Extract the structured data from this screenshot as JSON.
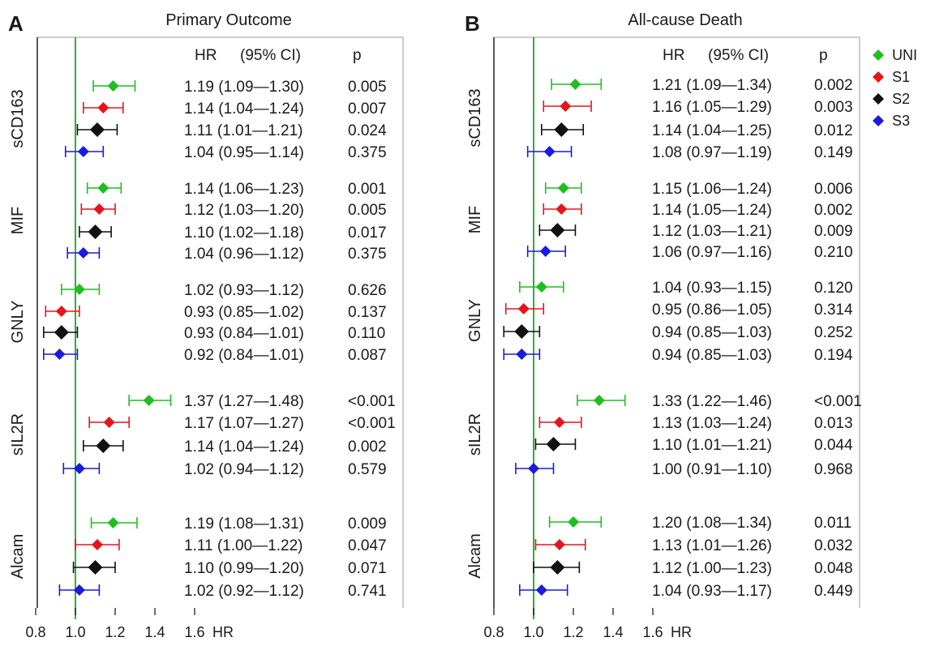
{
  "panels": [
    {
      "letter": "A",
      "title": "Primary Outcome"
    },
    {
      "letter": "B",
      "title": "All-cause Death"
    }
  ],
  "column_headers": {
    "hr": "HR",
    "ci": "(95% CI)",
    "p": "p"
  },
  "x_axis_label": "HR",
  "legend": [
    {
      "name": "UNI",
      "color": "#1fbf1f"
    },
    {
      "name": "S1",
      "color": "#e8141b"
    },
    {
      "name": "S2",
      "color": "#111111"
    },
    {
      "name": "S3",
      "color": "#1a1ae0"
    }
  ],
  "reference_line_color": "#2db32d",
  "chart_data": [
    {
      "type": "forest",
      "title": "Primary Outcome",
      "xlabel": "HR",
      "xlim": [
        0.8,
        2.0
      ],
      "x_ticks": [
        "0.8",
        "1.0",
        "1.2",
        "1.4",
        "1.6"
      ],
      "reference_value": 1.0,
      "groups": [
        {
          "name": "sCD163",
          "rows": [
            {
              "series": "UNI",
              "hr": 1.19,
              "lo": 1.09,
              "hi": 1.3,
              "text": "1.19  (1.09—1.30)",
              "p": "0.005"
            },
            {
              "series": "S1",
              "hr": 1.14,
              "lo": 1.04,
              "hi": 1.24,
              "text": "1.14  (1.04—1.24)",
              "p": "0.007"
            },
            {
              "series": "S2",
              "hr": 1.11,
              "lo": 1.01,
              "hi": 1.21,
              "text": "1.11  (1.01—1.21)",
              "p": "0.024"
            },
            {
              "series": "S3",
              "hr": 1.04,
              "lo": 0.95,
              "hi": 1.14,
              "text": "1.04  (0.95—1.14)",
              "p": "0.375"
            }
          ]
        },
        {
          "name": "MIF",
          "rows": [
            {
              "series": "UNI",
              "hr": 1.14,
              "lo": 1.06,
              "hi": 1.23,
              "text": "1.14  (1.06—1.23)",
              "p": "0.001"
            },
            {
              "series": "S1",
              "hr": 1.12,
              "lo": 1.03,
              "hi": 1.2,
              "text": "1.12  (1.03—1.20)",
              "p": "0.005"
            },
            {
              "series": "S2",
              "hr": 1.1,
              "lo": 1.02,
              "hi": 1.18,
              "text": "1.10  (1.02—1.18)",
              "p": "0.017"
            },
            {
              "series": "S3",
              "hr": 1.04,
              "lo": 0.96,
              "hi": 1.12,
              "text": "1.04  (0.96—1.12)",
              "p": "0.375"
            }
          ]
        },
        {
          "name": "GNLY",
          "rows": [
            {
              "series": "UNI",
              "hr": 1.02,
              "lo": 0.93,
              "hi": 1.12,
              "text": "1.02  (0.93—1.12)",
              "p": "0.626"
            },
            {
              "series": "S1",
              "hr": 0.93,
              "lo": 0.85,
              "hi": 1.02,
              "text": "0.93  (0.85—1.02)",
              "p": "0.137"
            },
            {
              "series": "S2",
              "hr": 0.93,
              "lo": 0.84,
              "hi": 1.01,
              "text": "0.93  (0.84—1.01)",
              "p": "0.110"
            },
            {
              "series": "S3",
              "hr": 0.92,
              "lo": 0.84,
              "hi": 1.01,
              "text": "0.92  (0.84—1.01)",
              "p": "0.087"
            }
          ]
        },
        {
          "name": "sIL2R",
          "rows": [
            {
              "series": "UNI",
              "hr": 1.37,
              "lo": 1.27,
              "hi": 1.48,
              "text": "1.37  (1.27—1.48)",
              "p": "<0.001"
            },
            {
              "series": "S1",
              "hr": 1.17,
              "lo": 1.07,
              "hi": 1.27,
              "text": "1.17  (1.07—1.27)",
              "p": "<0.001"
            },
            {
              "series": "S2",
              "hr": 1.14,
              "lo": 1.04,
              "hi": 1.24,
              "text": "1.14  (1.04—1.24)",
              "p": "0.002"
            },
            {
              "series": "S3",
              "hr": 1.02,
              "lo": 0.94,
              "hi": 1.12,
              "text": "1.02  (0.94—1.12)",
              "p": "0.579"
            }
          ]
        },
        {
          "name": "Alcam",
          "rows": [
            {
              "series": "UNI",
              "hr": 1.19,
              "lo": 1.08,
              "hi": 1.31,
              "text": "1.19  (1.08—1.31)",
              "p": "0.009"
            },
            {
              "series": "S1",
              "hr": 1.11,
              "lo": 1.0,
              "hi": 1.22,
              "text": "1.11  (1.00—1.22)",
              "p": "0.047"
            },
            {
              "series": "S2",
              "hr": 1.1,
              "lo": 0.99,
              "hi": 1.2,
              "text": "1.10  (0.99—1.20)",
              "p": "0.071"
            },
            {
              "series": "S3",
              "hr": 1.02,
              "lo": 0.92,
              "hi": 1.12,
              "text": "1.02  (0.92—1.12)",
              "p": "0.741"
            }
          ]
        }
      ]
    },
    {
      "type": "forest",
      "title": "All-cause Death",
      "xlabel": "HR",
      "xlim": [
        0.8,
        2.0
      ],
      "x_ticks": [
        "0.8",
        "1.0",
        "1.2",
        "1.4",
        "1.6"
      ],
      "reference_value": 1.0,
      "groups": [
        {
          "name": "sCD163",
          "rows": [
            {
              "series": "UNI",
              "hr": 1.21,
              "lo": 1.09,
              "hi": 1.34,
              "text": "1.21  (1.09—1.34)",
              "p": "0.002"
            },
            {
              "series": "S1",
              "hr": 1.16,
              "lo": 1.05,
              "hi": 1.29,
              "text": "1.16  (1.05—1.29)",
              "p": "0.003"
            },
            {
              "series": "S2",
              "hr": 1.14,
              "lo": 1.04,
              "hi": 1.25,
              "text": "1.14  (1.04—1.25)",
              "p": "0.012"
            },
            {
              "series": "S3",
              "hr": 1.08,
              "lo": 0.97,
              "hi": 1.19,
              "text": "1.08  (0.97—1.19)",
              "p": "0.149"
            }
          ]
        },
        {
          "name": "MIF",
          "rows": [
            {
              "series": "UNI",
              "hr": 1.15,
              "lo": 1.06,
              "hi": 1.24,
              "text": "1.15  (1.06—1.24)",
              "p": "0.006"
            },
            {
              "series": "S1",
              "hr": 1.14,
              "lo": 1.05,
              "hi": 1.24,
              "text": "1.14  (1.05—1.24)",
              "p": "0.002"
            },
            {
              "series": "S2",
              "hr": 1.12,
              "lo": 1.03,
              "hi": 1.21,
              "text": "1.12  (1.03—1.21)",
              "p": "0.009"
            },
            {
              "series": "S3",
              "hr": 1.06,
              "lo": 0.97,
              "hi": 1.16,
              "text": "1.06  (0.97—1.16)",
              "p": "0.210"
            }
          ]
        },
        {
          "name": "GNLY",
          "rows": [
            {
              "series": "UNI",
              "hr": 1.04,
              "lo": 0.93,
              "hi": 1.15,
              "text": "1.04  (0.93—1.15)",
              "p": "0.120"
            },
            {
              "series": "S1",
              "hr": 0.95,
              "lo": 0.86,
              "hi": 1.05,
              "text": "0.95  (0.86—1.05)",
              "p": "0.314"
            },
            {
              "series": "S2",
              "hr": 0.94,
              "lo": 0.85,
              "hi": 1.03,
              "text": "0.94  (0.85—1.03)",
              "p": "0.252"
            },
            {
              "series": "S3",
              "hr": 0.94,
              "lo": 0.85,
              "hi": 1.03,
              "text": "0.94  (0.85—1.03)",
              "p": "0.194"
            }
          ]
        },
        {
          "name": "sIL2R",
          "rows": [
            {
              "series": "UNI",
              "hr": 1.33,
              "lo": 1.22,
              "hi": 1.46,
              "text": "1.33  (1.22—1.46)",
              "p": "<0.001"
            },
            {
              "series": "S1",
              "hr": 1.13,
              "lo": 1.03,
              "hi": 1.24,
              "text": "1.13  (1.03—1.24)",
              "p": "0.013"
            },
            {
              "series": "S2",
              "hr": 1.1,
              "lo": 1.01,
              "hi": 1.21,
              "text": "1.10  (1.01—1.21)",
              "p": "0.044"
            },
            {
              "series": "S3",
              "hr": 1.0,
              "lo": 0.91,
              "hi": 1.1,
              "text": "1.00  (0.91—1.10)",
              "p": "0.968"
            }
          ]
        },
        {
          "name": "Alcam",
          "rows": [
            {
              "series": "UNI",
              "hr": 1.2,
              "lo": 1.08,
              "hi": 1.34,
              "text": "1.20  (1.08—1.34)",
              "p": "0.011"
            },
            {
              "series": "S1",
              "hr": 1.13,
              "lo": 1.01,
              "hi": 1.26,
              "text": "1.13  (1.01—1.26)",
              "p": "0.032"
            },
            {
              "series": "S2",
              "hr": 1.12,
              "lo": 1.0,
              "hi": 1.23,
              "text": "1.12  (1.00—1.23)",
              "p": "0.048"
            },
            {
              "series": "S3",
              "hr": 1.04,
              "lo": 0.93,
              "hi": 1.17,
              "text": "1.04  (0.93—1.17)",
              "p": "0.449"
            }
          ]
        }
      ]
    }
  ]
}
